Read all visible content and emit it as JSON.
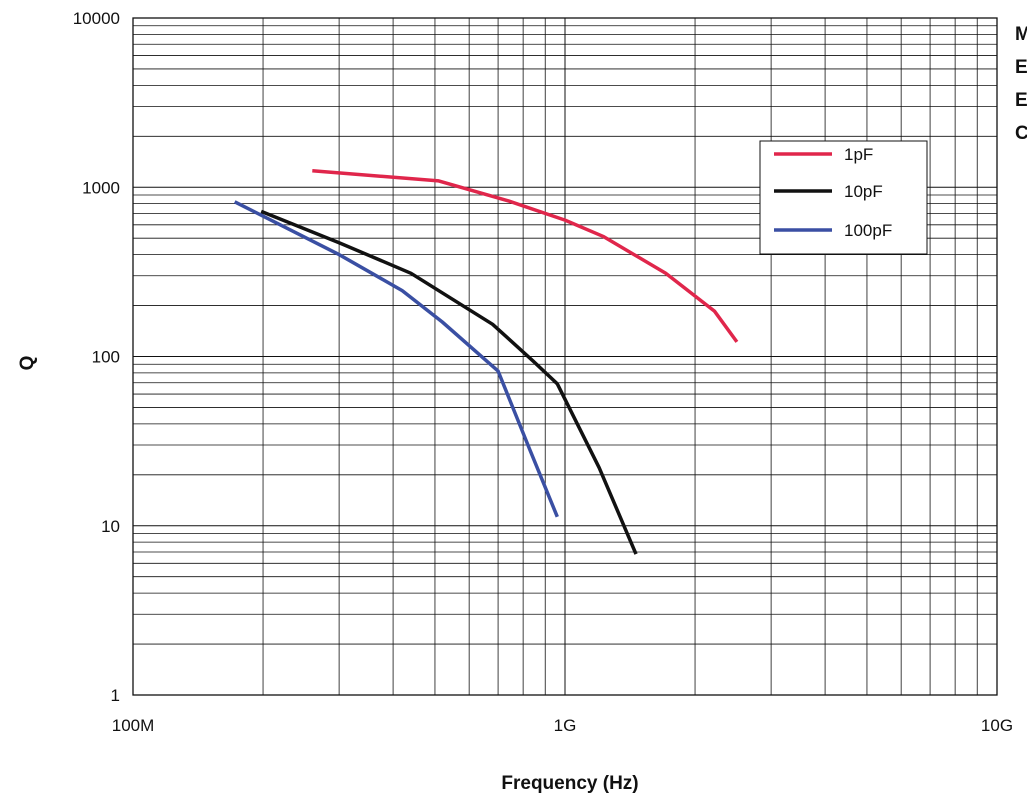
{
  "chart_data": {
    "type": "line",
    "title": "",
    "xlabel": "Frequency (Hz)",
    "ylabel": "Q",
    "xscale": "log",
    "yscale": "log",
    "xlim": [
      100000000,
      10000000000
    ],
    "ylim": [
      1,
      10000
    ],
    "grid": true,
    "legend_position": "top-right",
    "x_tick_labels": [
      {
        "value": 100000000,
        "label": "100M"
      },
      {
        "value": 1000000000,
        "label": "1G"
      },
      {
        "value": 10000000000,
        "label": "10G"
      }
    ],
    "y_tick_labels": [
      {
        "value": 1,
        "label": "1"
      },
      {
        "value": 10,
        "label": "10"
      },
      {
        "value": 100,
        "label": "100"
      },
      {
        "value": 1000,
        "label": "1000"
      },
      {
        "value": 10000,
        "label": "10000"
      }
    ],
    "series": [
      {
        "name": "1pF",
        "color": "#e0264b",
        "points": [
          [
            260000000,
            1250
          ],
          [
            510000000,
            1090
          ],
          [
            740000000,
            830
          ],
          [
            1000000000,
            640
          ],
          [
            1230000000,
            510
          ],
          [
            1710000000,
            310
          ],
          [
            2220000000,
            185
          ],
          [
            2500000000,
            122
          ]
        ]
      },
      {
        "name": "10pF",
        "color": "#111111",
        "points": [
          [
            198000000,
            720
          ],
          [
            300000000,
            470
          ],
          [
            440000000,
            310
          ],
          [
            680000000,
            155
          ],
          [
            840000000,
            95
          ],
          [
            960000000,
            69
          ],
          [
            1200000000,
            22
          ],
          [
            1460000000,
            6.8
          ]
        ]
      },
      {
        "name": "100pF",
        "color": "#3a4fa3",
        "points": [
          [
            172000000,
            820
          ],
          [
            300000000,
            400
          ],
          [
            420000000,
            245
          ],
          [
            520000000,
            160
          ],
          [
            700000000,
            82
          ],
          [
            830000000,
            28
          ],
          [
            960000000,
            11.3
          ]
        ]
      }
    ]
  },
  "side_text": [
    "M",
    "E",
    "E",
    "C"
  ]
}
